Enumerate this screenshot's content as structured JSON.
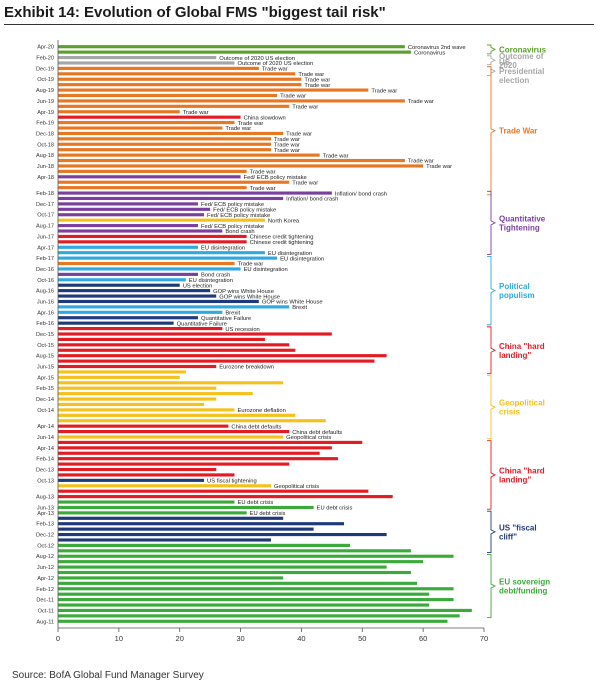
{
  "title": "Exhibit 14: Evolution of Global FMS \"biggest tail risk\"",
  "source": "Source: BofA Global Fund Manager Survey",
  "colors": {
    "Coronavirus": "#5aa02c",
    "Outcome of 2020": "#a6a6a6",
    "US Presidential election": "#e87722",
    "Trade War": "#e87722",
    "Quantitative Tightening": "#7b3f9e",
    "Political populism": "#2fa9e0",
    "China hard landing": "#e31b23",
    "Geopolitical crisis": "#f5c11c",
    "US fiscal cliff": "#1f3a7a",
    "EU sovereign debt/funding": "#3aab3a",
    "Quantitative Failure": "#1f3a7a"
  },
  "chart_data": {
    "type": "bar",
    "orientation": "horizontal",
    "x_ticks": [
      0,
      10,
      20,
      30,
      40,
      50,
      60,
      70
    ],
    "xlim": [
      0,
      70
    ],
    "grid": false,
    "bars": [
      {
        "month": "Apr-20",
        "label": "Coronavirus 2nd wave",
        "value": 57,
        "cat": "Coronavirus"
      },
      {
        "month": "",
        "label": "Coronavirus",
        "value": 58,
        "cat": "Coronavirus"
      },
      {
        "month": "Feb-20",
        "label": "Outcome of 2020 US election",
        "value": 26,
        "cat": "Outcome of 2020"
      },
      {
        "month": "",
        "label": "Outcome of 2020 US election",
        "value": 29,
        "cat": "Outcome of 2020"
      },
      {
        "month": "Dec-19",
        "label": "Trade war",
        "value": 33,
        "cat": "Trade War"
      },
      {
        "month": "",
        "label": "Trade war",
        "value": 39,
        "cat": "Trade War"
      },
      {
        "month": "Oct-19",
        "label": "Trade war",
        "value": 40,
        "cat": "Trade War"
      },
      {
        "month": "",
        "label": "Trade war",
        "value": 40,
        "cat": "Trade War"
      },
      {
        "month": "Aug-19",
        "label": "Trade war",
        "value": 51,
        "cat": "Trade War"
      },
      {
        "month": "",
        "label": "Trade war",
        "value": 36,
        "cat": "Trade War"
      },
      {
        "month": "Jun-19",
        "label": "Trade war",
        "value": 57,
        "cat": "Trade War"
      },
      {
        "month": "",
        "label": "Trade war",
        "value": 38,
        "cat": "Trade War"
      },
      {
        "month": "Apr-19",
        "label": "Trade war",
        "value": 20,
        "cat": "Trade War"
      },
      {
        "month": "",
        "label": "China slowdown",
        "value": 30,
        "cat": "China hard landing"
      },
      {
        "month": "Feb-19",
        "label": "Trade war",
        "value": 29,
        "cat": "Trade War"
      },
      {
        "month": "",
        "label": "Trade war",
        "value": 27,
        "cat": "Trade War"
      },
      {
        "month": "Dec-18",
        "label": "Trade war",
        "value": 37,
        "cat": "Trade War"
      },
      {
        "month": "",
        "label": "Trade war",
        "value": 35,
        "cat": "Trade War"
      },
      {
        "month": "Oct-18",
        "label": "Trade war",
        "value": 35,
        "cat": "Trade War"
      },
      {
        "month": "",
        "label": "Trade war",
        "value": 35,
        "cat": "Trade War"
      },
      {
        "month": "Aug-18",
        "label": "Trade war",
        "value": 43,
        "cat": "Trade War"
      },
      {
        "month": "",
        "label": "Trade war",
        "value": 57,
        "cat": "Trade War"
      },
      {
        "month": "Jun-18",
        "label": "Trade war",
        "value": 60,
        "cat": "Trade War"
      },
      {
        "month": "",
        "label": "Trade war",
        "value": 31,
        "cat": "Trade War"
      },
      {
        "month": "Apr-18",
        "label": "Fed/ ECB policy mistake",
        "value": 30,
        "cat": "Quantitative Tightening"
      },
      {
        "month": "",
        "label": "Trade war",
        "value": 38,
        "cat": "Trade War"
      },
      {
        "month": "",
        "label": "Trade war",
        "value": 31,
        "cat": "Trade War"
      },
      {
        "month": "Feb-18",
        "label": "Inflation/ bond crash",
        "value": 45,
        "cat": "Quantitative Tightening"
      },
      {
        "month": "",
        "label": "Inflation/ bond crash",
        "value": 37,
        "cat": "Quantitative Tightening"
      },
      {
        "month": "Dec-17",
        "label": "Fed/ ECB policy mistake",
        "value": 23,
        "cat": "Quantitative Tightening"
      },
      {
        "month": "",
        "label": "Fed/ ECB policy mistake",
        "value": 25,
        "cat": "Quantitative Tightening"
      },
      {
        "month": "Oct-17",
        "label": "Fed/ ECB policy mistake",
        "value": 24,
        "cat": "Quantitative Tightening"
      },
      {
        "month": "",
        "label": "North Korea",
        "value": 34,
        "cat": "Geopolitical crisis"
      },
      {
        "month": "Aug-17",
        "label": "Fed/ ECB policy mistake",
        "value": 23,
        "cat": "Quantitative Tightening"
      },
      {
        "month": "",
        "label": "Bond crash",
        "value": 27,
        "cat": "Quantitative Tightening"
      },
      {
        "month": "Jun-17",
        "label": "Chinese credit tightening",
        "value": 31,
        "cat": "China hard landing"
      },
      {
        "month": "",
        "label": "Chinese credit tightening",
        "value": 31,
        "cat": "China hard landing"
      },
      {
        "month": "Apr-17",
        "label": "EU disintegration",
        "value": 23,
        "cat": "Political populism"
      },
      {
        "month": "",
        "label": "EU disintegration",
        "value": 34,
        "cat": "Political populism"
      },
      {
        "month": "Feb-17",
        "label": "EU disintegration",
        "value": 36,
        "cat": "Political populism"
      },
      {
        "month": "",
        "label": "Trade war",
        "value": 29,
        "cat": "Trade War"
      },
      {
        "month": "Dec-16",
        "label": "EU disintegration",
        "value": 30,
        "cat": "Political populism"
      },
      {
        "month": "",
        "label": "Bond crash",
        "value": 23,
        "cat": "Quantitative Tightening"
      },
      {
        "month": "Oct-16",
        "label": "EU disintegration",
        "value": 21,
        "cat": "Political populism"
      },
      {
        "month": "",
        "label": "US election",
        "value": 20,
        "cat": "US fiscal cliff"
      },
      {
        "month": "Aug-16",
        "label": "GOP wins White House",
        "value": 25,
        "cat": "US fiscal cliff"
      },
      {
        "month": "",
        "label": "GOP wins White House",
        "value": 26,
        "cat": "US fiscal cliff"
      },
      {
        "month": "Jun-16",
        "label": "GOP wins White House",
        "value": 33,
        "cat": "US fiscal cliff"
      },
      {
        "month": "",
        "label": "Brexit",
        "value": 38,
        "cat": "Political populism"
      },
      {
        "month": "Apr-16",
        "label": "Brexit",
        "value": 27,
        "cat": "Political populism"
      },
      {
        "month": "",
        "label": "Quantitative Failure",
        "value": 23,
        "cat": "Quantitative Failure"
      },
      {
        "month": "Feb-16",
        "label": "Quantitative Failure",
        "value": 19,
        "cat": "Quantitative Failure"
      },
      {
        "month": "",
        "label": "US recession",
        "value": 27,
        "cat": "China hard landing"
      },
      {
        "month": "Dec-15",
        "label": "",
        "value": 45,
        "cat": "China hard landing"
      },
      {
        "month": "",
        "label": "",
        "value": 34,
        "cat": "China hard landing"
      },
      {
        "month": "Oct-15",
        "label": "",
        "value": 38,
        "cat": "China hard landing"
      },
      {
        "month": "",
        "label": "",
        "value": 39,
        "cat": "China hard landing"
      },
      {
        "month": "Aug-15",
        "label": "",
        "value": 54,
        "cat": "China hard landing"
      },
      {
        "month": "",
        "label": "",
        "value": 52,
        "cat": "China hard landing"
      },
      {
        "month": "Jun-15",
        "label": "Eurozone breakdown",
        "value": 26,
        "cat": "China hard landing"
      },
      {
        "month": "",
        "label": "",
        "value": 21,
        "cat": "Geopolitical crisis"
      },
      {
        "month": "Apr-15",
        "label": "",
        "value": 20,
        "cat": "Geopolitical crisis"
      },
      {
        "month": "",
        "label": "",
        "value": 37,
        "cat": "Geopolitical crisis"
      },
      {
        "month": "Feb-15",
        "label": "",
        "value": 26,
        "cat": "Geopolitical crisis"
      },
      {
        "month": "",
        "label": "",
        "value": 32,
        "cat": "Geopolitical crisis"
      },
      {
        "month": "Dec-14",
        "label": "",
        "value": 26,
        "cat": "Geopolitical crisis"
      },
      {
        "month": "",
        "label": "",
        "value": 24,
        "cat": "Geopolitical crisis"
      },
      {
        "month": "Oct-14",
        "label": "Eurozone deflation",
        "value": 29,
        "cat": "Geopolitical crisis"
      },
      {
        "month": "",
        "label": "",
        "value": 39,
        "cat": "Geopolitical crisis"
      },
      {
        "month": "",
        "label": "",
        "value": 44,
        "cat": "Geopolitical crisis"
      },
      {
        "month": "Apr-14",
        "label": "China debt defaults",
        "value": 28,
        "cat": "China hard landing"
      },
      {
        "month": "",
        "label": "China debt defaults",
        "value": 38,
        "cat": "China hard landing"
      },
      {
        "month": "Jun-14",
        "label": "Geopolitical crisis",
        "value": 37,
        "cat": "Geopolitical crisis"
      },
      {
        "month": "",
        "label": "",
        "value": 50,
        "cat": "China hard landing"
      },
      {
        "month": "Apr-14",
        "label": "",
        "value": 45,
        "cat": "China hard landing"
      },
      {
        "month": "",
        "label": "",
        "value": 43,
        "cat": "China hard landing"
      },
      {
        "month": "Feb-14",
        "label": "",
        "value": 46,
        "cat": "China hard landing"
      },
      {
        "month": "",
        "label": "",
        "value": 38,
        "cat": "China hard landing"
      },
      {
        "month": "Dec-13",
        "label": "",
        "value": 26,
        "cat": "China hard landing"
      },
      {
        "month": "",
        "label": "",
        "value": 29,
        "cat": "China hard landing"
      },
      {
        "month": "Oct-13",
        "label": "US fiscal tightening",
        "value": 24,
        "cat": "US fiscal cliff"
      },
      {
        "month": "",
        "label": "Geopolitical crisis",
        "value": 35,
        "cat": "Geopolitical crisis"
      },
      {
        "month": "",
        "label": "",
        "value": 51,
        "cat": "China hard landing"
      },
      {
        "month": "Aug-13",
        "label": "",
        "value": 55,
        "cat": "China hard landing"
      },
      {
        "month": "",
        "label": "EU debt crisis",
        "value": 29,
        "cat": "EU sovereign debt/funding"
      },
      {
        "month": "Jun-13",
        "label": "EU debt crisis",
        "value": 42,
        "cat": "EU sovereign debt/funding"
      },
      {
        "month": "Apr-13",
        "label": "EU debt crisis",
        "value": 31,
        "cat": "EU sovereign debt/funding"
      },
      {
        "month": "",
        "label": "",
        "value": 37,
        "cat": "US fiscal cliff"
      },
      {
        "month": "Feb-13",
        "label": "",
        "value": 47,
        "cat": "US fiscal cliff"
      },
      {
        "month": "",
        "label": "",
        "value": 42,
        "cat": "US fiscal cliff"
      },
      {
        "month": "Dec-12",
        "label": "",
        "value": 54,
        "cat": "US fiscal cliff"
      },
      {
        "month": "",
        "label": "",
        "value": 35,
        "cat": "US fiscal cliff"
      },
      {
        "month": "Oct-12",
        "label": "",
        "value": 48,
        "cat": "EU sovereign debt/funding"
      },
      {
        "month": "",
        "label": "",
        "value": 58,
        "cat": "EU sovereign debt/funding"
      },
      {
        "month": "Aug-12",
        "label": "",
        "value": 65,
        "cat": "EU sovereign debt/funding"
      },
      {
        "month": "",
        "label": "",
        "value": 60,
        "cat": "EU sovereign debt/funding"
      },
      {
        "month": "Jun-12",
        "label": "",
        "value": 54,
        "cat": "EU sovereign debt/funding"
      },
      {
        "month": "",
        "label": "",
        "value": 58,
        "cat": "EU sovereign debt/funding"
      },
      {
        "month": "Apr-12",
        "label": "",
        "value": 37,
        "cat": "EU sovereign debt/funding"
      },
      {
        "month": "",
        "label": "",
        "value": 59,
        "cat": "EU sovereign debt/funding"
      },
      {
        "month": "Feb-12",
        "label": "",
        "value": 65,
        "cat": "EU sovereign debt/funding"
      },
      {
        "month": "",
        "label": "",
        "value": 61,
        "cat": "EU sovereign debt/funding"
      },
      {
        "month": "Dec-11",
        "label": "",
        "value": 65,
        "cat": "EU sovereign debt/funding"
      },
      {
        "month": "",
        "label": "",
        "value": 61,
        "cat": "EU sovereign debt/funding"
      },
      {
        "month": "Oct-11",
        "label": "",
        "value": 68,
        "cat": "EU sovereign debt/funding"
      },
      {
        "month": "",
        "label": "",
        "value": 66,
        "cat": "EU sovereign debt/funding"
      },
      {
        "month": "Aug-11",
        "label": "",
        "value": 64,
        "cat": "EU sovereign debt/funding"
      }
    ],
    "groups": [
      {
        "text": "Coronavirus",
        "from": 0,
        "to": 1,
        "color": "#5aa02c"
      },
      {
        "text": "Outcome of 2020",
        "from": 2,
        "to": 3,
        "color": "#a6a6a6"
      },
      {
        "text": "US Presidential election",
        "from": 4,
        "to": 5,
        "color": "#a6a6a6"
      },
      {
        "text": "Trade War",
        "from": 4,
        "to": 27,
        "color": "#e87722"
      },
      {
        "text": "Quantitative Tightening",
        "from": 27,
        "to": 38,
        "color": "#7b3f9e"
      },
      {
        "text": "Political populism",
        "from": 39,
        "to": 51,
        "color": "#2fa9e0"
      },
      {
        "text": "China \"hard landing\"",
        "from": 52,
        "to": 60,
        "color": "#e31b23"
      },
      {
        "text": "Geopolitical crisis",
        "from": 61,
        "to": 72,
        "color": "#f5c11c"
      },
      {
        "text": "China \"hard landing\"",
        "from": 73,
        "to": 85,
        "color": "#e31b23"
      },
      {
        "text": "US \"fiscal cliff\"",
        "from": 86,
        "to": 93,
        "color": "#1f3a7a"
      },
      {
        "text": "EU sovereign debt/funding",
        "from": 94,
        "to": 105,
        "color": "#3aab3a"
      }
    ]
  }
}
